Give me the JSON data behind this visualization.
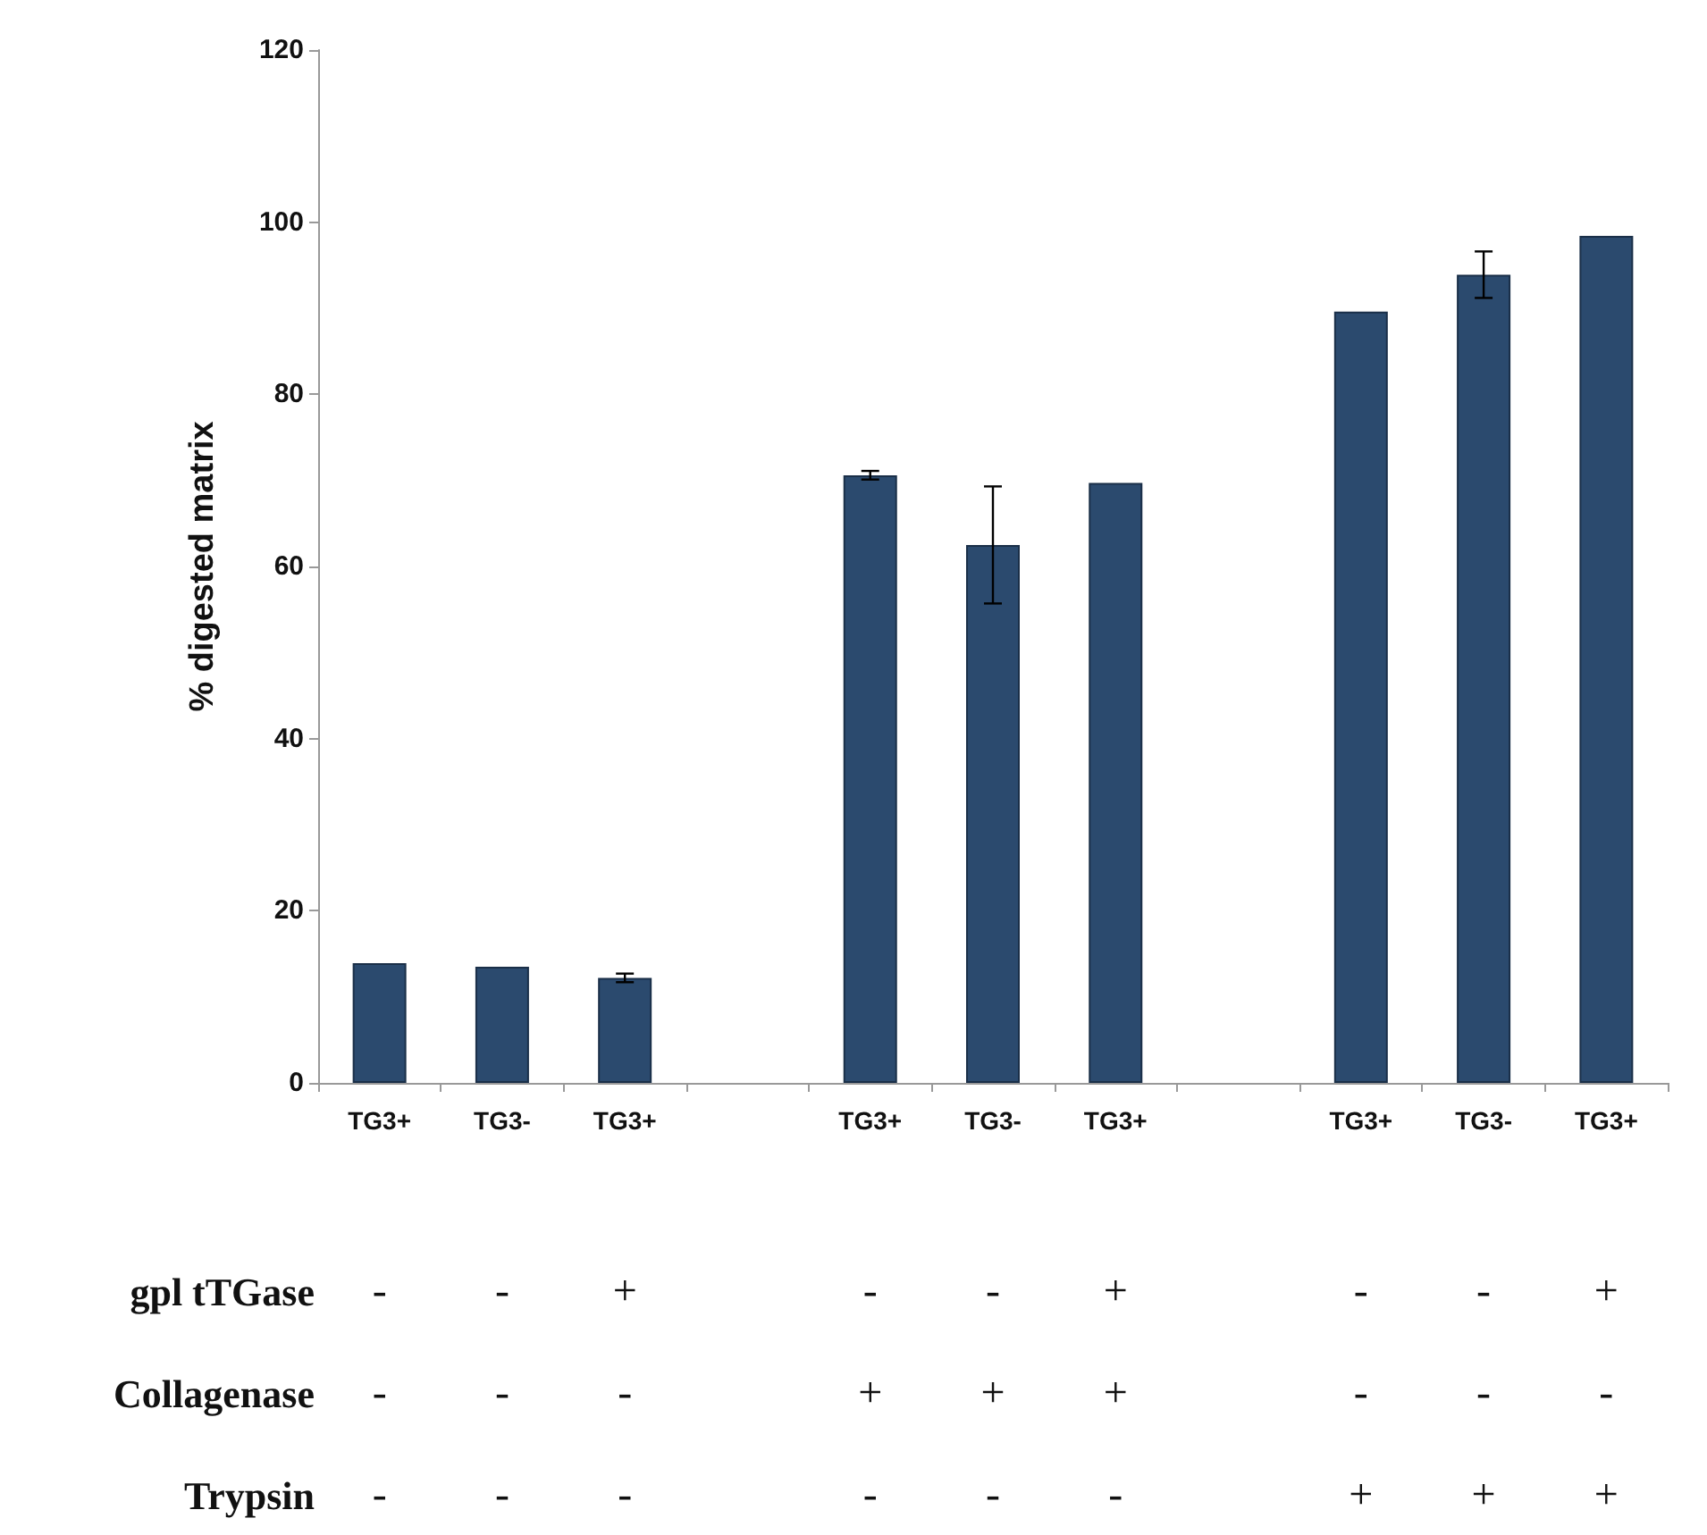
{
  "chart_data": {
    "type": "bar",
    "ylabel": "% digested matrix",
    "categories": [
      "TG3+",
      "TG3-",
      "TG3+",
      null,
      "TG3+",
      "TG3-",
      "TG3+",
      null,
      "TG3+",
      "TG3-",
      "TG3+"
    ],
    "values": [
      13.9,
      13.5,
      12.2,
      null,
      70.6,
      62.5,
      69.7,
      null,
      89.6,
      93.9,
      98.4
    ],
    "errors": [
      null,
      null,
      0.5,
      null,
      0.5,
      6.8,
      null,
      null,
      null,
      2.7,
      null
    ],
    "color": "#2b4a6e",
    "ylim": [
      0,
      120
    ],
    "yticks": [
      0,
      20,
      40,
      60,
      80,
      100,
      120
    ],
    "grid": false,
    "annotations": [
      "gpl tTGase",
      "-",
      "-",
      "+",
      "-",
      "-",
      "+",
      "-",
      "-",
      "+",
      "Collagenase",
      "-",
      "-",
      "-",
      "+",
      "+",
      "+",
      "-",
      "-",
      "-",
      "Trypsin",
      "-",
      "-",
      "-",
      "-",
      "-",
      "-",
      "+",
      "+",
      "+"
    ]
  }
}
